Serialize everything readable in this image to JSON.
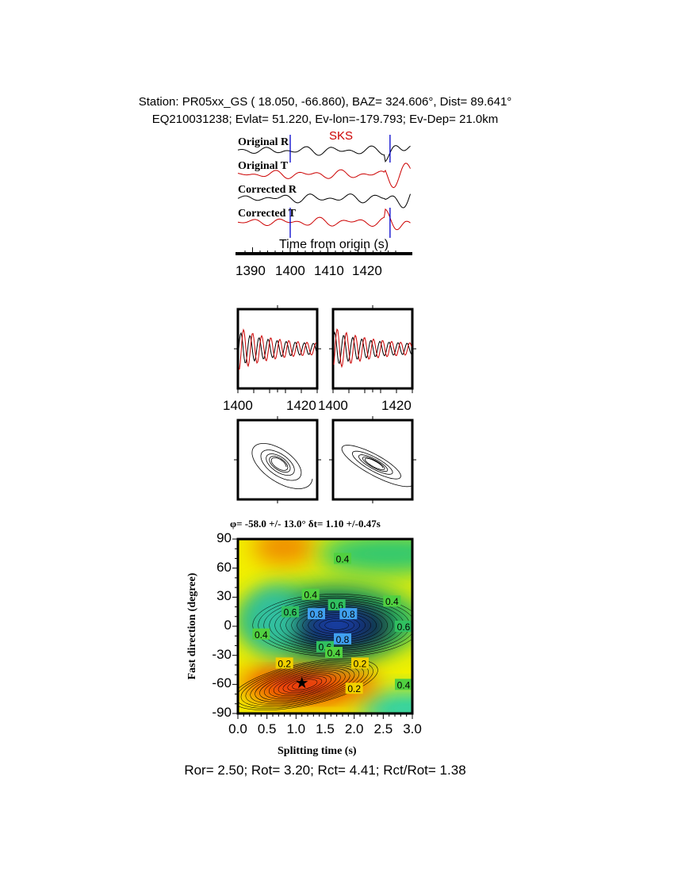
{
  "header": {
    "line1": "Station: PR05xx_GS (  18.050,  -66.860), BAZ=  324.606°, Dist=   89.641°",
    "line2": "EQ210031238; Evlat=  51.220, Ev-lon=-179.793; Ev-Dep= 21.0km"
  },
  "chart_data": [
    {
      "type": "line",
      "phase_label": "SKS",
      "trace_labels": [
        "Original R",
        "Original T",
        "Corrected R",
        "Corrected T"
      ],
      "xlabel": "Time from origin (s)",
      "x_ticks": [
        "1390",
        "1400",
        "1410",
        "1420"
      ],
      "xlim": [
        1386,
        1430
      ],
      "window_markers_s": [
        1400,
        1426.5
      ],
      "colors": {
        "R": "#000000",
        "T": "#cc0000",
        "marker": "#0000cc"
      }
    },
    {
      "type": "line",
      "panels": [
        "original",
        "corrected"
      ],
      "x_ticks": [
        "1400",
        "1420"
      ],
      "xlim": [
        1400,
        1425
      ]
    },
    {
      "type": "scatter",
      "panels": [
        "original particle motion",
        "corrected particle motion"
      ]
    },
    {
      "type": "heatmap",
      "title": "φ= -58.0 +/- 13.0° δt= 1.10 +/-0.47s",
      "xlabel": "Splitting time (s)",
      "ylabel": "Fast direction (degree)",
      "xlim": [
        0,
        3
      ],
      "ylim": [
        -90,
        90
      ],
      "x_ticks": [
        "0.0",
        "0.5",
        "1.0",
        "1.5",
        "2.0",
        "2.5",
        "3.0"
      ],
      "y_ticks": [
        "90",
        "60",
        "30",
        "0",
        "-30",
        "-60",
        "-90"
      ],
      "best_fit": {
        "dt": 1.1,
        "phi": -58.0
      },
      "minimum_region": {
        "dt": 1.7,
        "phi": 0
      },
      "contour_labels": [
        {
          "text": "0.4",
          "dt": 1.8,
          "phi": 70
        },
        {
          "text": "0.4",
          "dt": 1.25,
          "phi": 33
        },
        {
          "text": "0.6",
          "dt": 1.7,
          "phi": 22
        },
        {
          "text": "0.4",
          "dt": 2.65,
          "phi": 26
        },
        {
          "text": "0.6",
          "dt": 0.9,
          "phi": 15
        },
        {
          "text": "0.8",
          "dt": 1.35,
          "phi": 13
        },
        {
          "text": "0.8",
          "dt": 1.9,
          "phi": 13
        },
        {
          "text": "0.4",
          "dt": 0.4,
          "phi": -8
        },
        {
          "text": "0.6",
          "dt": 2.85,
          "phi": 0
        },
        {
          "text": "0.8",
          "dt": 1.8,
          "phi": -13
        },
        {
          "text": "0.6",
          "dt": 1.5,
          "phi": -21
        },
        {
          "text": "0.4",
          "dt": 1.65,
          "phi": -27
        },
        {
          "text": "0.2",
          "dt": 0.8,
          "phi": -38
        },
        {
          "text": "0.2",
          "dt": 2.1,
          "phi": -38
        },
        {
          "text": "0.2",
          "dt": 2.0,
          "phi": -64
        },
        {
          "text": "0.4",
          "dt": 2.85,
          "phi": -60
        }
      ]
    }
  ],
  "footer": {
    "ratios": "Ror= 2.50; Rot= 3.20; Rct= 4.41; Rct/Rot= 1.38"
  }
}
